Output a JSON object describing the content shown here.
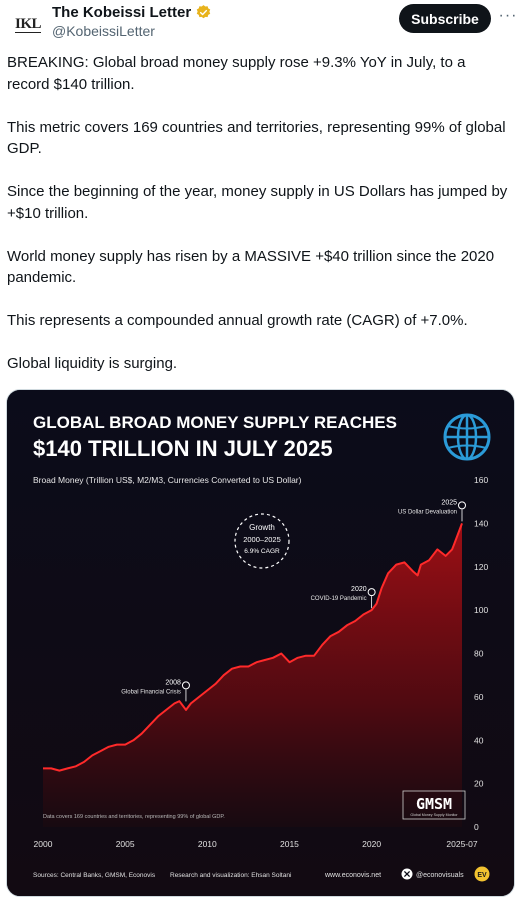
{
  "account": {
    "avatar_text": "IKL",
    "display_name": "The Kobeissi Letter",
    "handle": "@KobeissiLetter",
    "subscribe_label": "Subscribe",
    "more_label": "···"
  },
  "tweet": {
    "paragraphs": [
      "BREAKING: Global broad money supply rose +9.3% YoY in July, to a record $140 trillion.",
      "This metric covers 169 countries and territories, representing 99% of global GDP.",
      "Since the beginning of the year, money supply in US Dollars has jumped by +$10 trillion.",
      "World money supply has risen by a MASSIVE +$40 trillion since the 2020 pandemic.",
      "This represents a compounded annual growth rate (CAGR) of +7.0%.",
      "Global liquidity is surging."
    ]
  },
  "colors": {
    "verified_badge": "#e8b31c",
    "chart_bg": "#0b0b16",
    "chart_line": "#ff2a2a",
    "chart_fill": "#8b0a0f",
    "globe": "#2b9bd8"
  },
  "icons": {
    "verified": "verified-badge-icon",
    "globe": "globe-icon",
    "x_logo": "x-logo-icon"
  },
  "chart_data": {
    "type": "area",
    "title_line1": "GLOBAL BROAD MONEY SUPPLY REACHES",
    "title_line2": "$140 TRILLION IN JULY 2025",
    "ylabel": "Broad Money (Trillion US$, M2/M3, Currencies Converted to US Dollar)",
    "ylim": [
      0,
      160
    ],
    "yticks": [
      "0",
      "20",
      "40",
      "60",
      "80",
      "100",
      "120",
      "140",
      "160"
    ],
    "xticks": [
      "2000",
      "2005",
      "2010",
      "2015",
      "2020",
      "2025-07"
    ],
    "xtick_years": [
      2000,
      2005,
      2010,
      2015,
      2020,
      2025.5
    ],
    "xlim": [
      2000,
      2025.5
    ],
    "grid": false,
    "series": [
      {
        "x": [
          2000,
          2000.5,
          2001,
          2001.5,
          2002,
          2002.5,
          2003,
          2003.5,
          2004,
          2004.5,
          2005,
          2005.5,
          2006,
          2006.5,
          2007,
          2007.5,
          2008,
          2008.3,
          2008.7,
          2009,
          2009.5,
          2010,
          2010.5,
          2011,
          2011.5,
          2012,
          2012.5,
          2013,
          2013.5,
          2014,
          2014.5,
          2015,
          2015.5,
          2016,
          2016.5,
          2017,
          2017.5,
          2018,
          2018.5,
          2019,
          2019.5,
          2020,
          2020.3,
          2020.6,
          2021,
          2021.5,
          2022,
          2022.5,
          2022.8,
          2023,
          2023.5,
          2024,
          2024.5,
          2024.9,
          2025,
          2025.3,
          2025.5
        ],
        "values": [
          27,
          27,
          26,
          27,
          28,
          30,
          33,
          35,
          37,
          38,
          38,
          40,
          43,
          47,
          51,
          54,
          57,
          58,
          54,
          57,
          60,
          63,
          66,
          70,
          73,
          74,
          74,
          76,
          77,
          78,
          80,
          76,
          78,
          79,
          79,
          84,
          88,
          90,
          93,
          95,
          98,
          100,
          103,
          110,
          117,
          121,
          122,
          118,
          116,
          121,
          123,
          128,
          125,
          128,
          130,
          136,
          140
        ]
      }
    ],
    "annotations": [
      {
        "year": "2008",
        "text": "Global Financial Crisis",
        "x": 2008.7,
        "y": 57
      },
      {
        "year": "2020",
        "text": "COVID-19 Pandemic",
        "x": 2020.0,
        "y": 100
      },
      {
        "year": "2025",
        "text": "US Dollar Devaluation",
        "x": 2025.5,
        "y": 140
      }
    ],
    "growth_badge": [
      "Growth",
      "2000–2025",
      "6.9% CAGR"
    ],
    "footnote": "Data covers 169 countries and territories, representing 99% of global GDP.",
    "source": "Sources: Central Banks, GMSM, Econovis",
    "credit": "Research and visualization: Ehsan Soltani",
    "website": "www.econovis.net",
    "social": "@econovisuals",
    "brand_logo_text": "EV",
    "gmsm_logo": "GMSM",
    "gmsm_sub": "Global Money Supply Monitor"
  }
}
